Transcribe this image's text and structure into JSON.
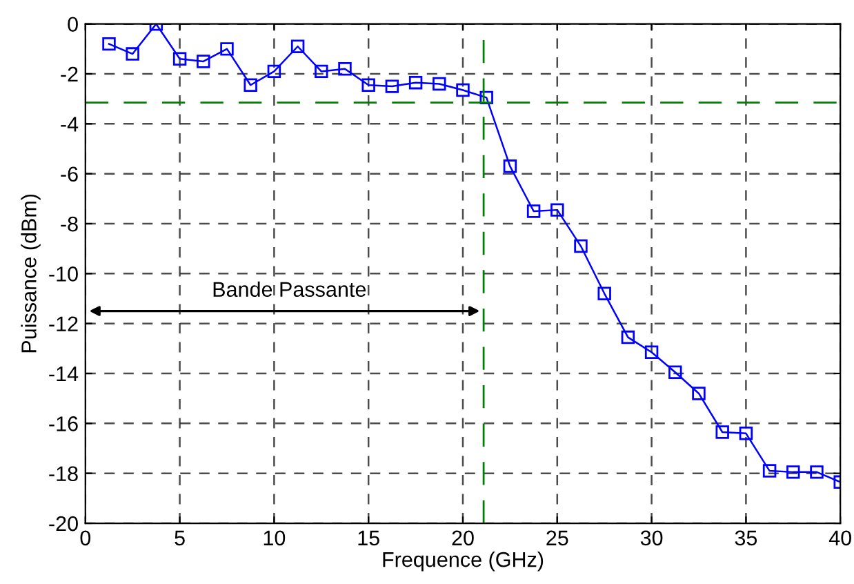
{
  "chart_data": {
    "type": "line",
    "xlabel": "Frequence (GHz)",
    "ylabel": "Puissance (dBm)",
    "x": [
      1.25,
      2.5,
      3.75,
      5,
      6.25,
      7.5,
      8.75,
      10,
      11.25,
      12.5,
      13.75,
      15,
      16.25,
      17.5,
      18.75,
      20,
      21.25,
      22.5,
      23.75,
      25,
      26.25,
      27.5,
      28.75,
      30,
      31.25,
      32.5,
      33.75,
      35,
      36.25,
      37.5,
      38.75,
      40
    ],
    "series": [
      {
        "color": "#0000ff",
        "values": [
          -0.8,
          -1.2,
          0,
          -1.4,
          -1.5,
          -1.0,
          -2.45,
          -1.9,
          -0.9,
          -1.9,
          -1.8,
          -2.45,
          -2.5,
          -2.35,
          -2.4,
          -2.65,
          -2.95,
          -5.7,
          -7.5,
          -7.45,
          -8.9,
          -10.8,
          -12.55,
          -13.15,
          -13.95,
          -14.8,
          -16.35,
          -16.4,
          -17.9,
          -17.95,
          -17.95,
          -18.35
        ]
      }
    ],
    "marker": "square",
    "line_style": "solid",
    "xlim": [
      0,
      40
    ],
    "xticks": [
      0,
      5,
      10,
      15,
      20,
      25,
      30,
      35,
      40
    ],
    "ylim": [
      -20,
      0
    ],
    "yticks": [
      -20,
      -18,
      -16,
      -14,
      -12,
      -10,
      -8,
      -6,
      -4,
      -2,
      0
    ],
    "grid": true,
    "legend": false,
    "ref_lines": [
      {
        "axis": "y",
        "value": -3.15,
        "color": "#008000",
        "line_style": "dashed"
      },
      {
        "axis": "x",
        "value": 21.1,
        "color": "#008000",
        "line_style": "dashed"
      }
    ],
    "annotations": [
      "Bande Passante"
    ]
  }
}
